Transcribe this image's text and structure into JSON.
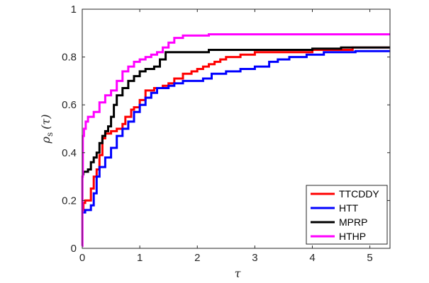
{
  "chart_data": {
    "type": "line",
    "title": "",
    "xlabel": "τ",
    "ylabel": "ρ",
    "ylabel_subscript": "s",
    "ylabel_arg": "(τ)",
    "xlim": [
      0,
      5.35
    ],
    "ylim": [
      0,
      1
    ],
    "x_ticks": [
      0,
      1,
      2,
      3,
      4,
      5
    ],
    "y_ticks": [
      0,
      0.2,
      0.4,
      0.6,
      0.8,
      1
    ],
    "x_tick_labels": [
      "0",
      "1",
      "2",
      "3",
      "4",
      "5"
    ],
    "y_tick_labels": [
      "0",
      "0.2",
      "0.4",
      "0.6",
      "0.8",
      "1"
    ],
    "grid": false,
    "legend_position": "bottom-right",
    "series": [
      {
        "name": "TTCDDY",
        "color": "#ff0000",
        "points": [
          [
            0,
            0.16
          ],
          [
            0.02,
            0.19
          ],
          [
            0.05,
            0.2
          ],
          [
            0.1,
            0.2
          ],
          [
            0.15,
            0.25
          ],
          [
            0.2,
            0.3
          ],
          [
            0.25,
            0.33
          ],
          [
            0.3,
            0.39
          ],
          [
            0.35,
            0.46
          ],
          [
            0.4,
            0.48
          ],
          [
            0.5,
            0.49
          ],
          [
            0.6,
            0.5
          ],
          [
            0.7,
            0.52
          ],
          [
            0.75,
            0.55
          ],
          [
            0.85,
            0.58
          ],
          [
            0.9,
            0.59
          ],
          [
            1.0,
            0.62
          ],
          [
            1.1,
            0.66
          ],
          [
            1.25,
            0.67
          ],
          [
            1.4,
            0.68
          ],
          [
            1.5,
            0.69
          ],
          [
            1.6,
            0.71
          ],
          [
            1.75,
            0.73
          ],
          [
            1.9,
            0.74
          ],
          [
            2.0,
            0.75
          ],
          [
            2.1,
            0.76
          ],
          [
            2.2,
            0.77
          ],
          [
            2.3,
            0.78
          ],
          [
            2.4,
            0.79
          ],
          [
            2.5,
            0.8
          ],
          [
            2.75,
            0.81
          ],
          [
            3.0,
            0.82
          ],
          [
            3.5,
            0.82
          ],
          [
            4.0,
            0.83
          ],
          [
            4.5,
            0.83
          ],
          [
            4.7,
            0.84
          ],
          [
            5.35,
            0.84
          ]
        ]
      },
      {
        "name": "HTT",
        "color": "#0000ff",
        "points": [
          [
            0,
            0.15
          ],
          [
            0.05,
            0.16
          ],
          [
            0.15,
            0.18
          ],
          [
            0.2,
            0.23
          ],
          [
            0.25,
            0.3
          ],
          [
            0.3,
            0.34
          ],
          [
            0.4,
            0.38
          ],
          [
            0.5,
            0.42
          ],
          [
            0.6,
            0.47
          ],
          [
            0.7,
            0.5
          ],
          [
            0.8,
            0.53
          ],
          [
            0.9,
            0.57
          ],
          [
            1.0,
            0.6
          ],
          [
            1.1,
            0.63
          ],
          [
            1.2,
            0.65
          ],
          [
            1.3,
            0.67
          ],
          [
            1.5,
            0.68
          ],
          [
            1.6,
            0.69
          ],
          [
            1.75,
            0.7
          ],
          [
            2.0,
            0.7
          ],
          [
            2.1,
            0.71
          ],
          [
            2.25,
            0.73
          ],
          [
            2.5,
            0.74
          ],
          [
            2.75,
            0.75
          ],
          [
            3.0,
            0.76
          ],
          [
            3.25,
            0.78
          ],
          [
            3.4,
            0.79
          ],
          [
            3.6,
            0.8
          ],
          [
            3.9,
            0.81
          ],
          [
            4.2,
            0.82
          ],
          [
            4.75,
            0.825
          ],
          [
            5.35,
            0.825
          ]
        ]
      },
      {
        "name": "MPRP",
        "color": "#000000",
        "points": [
          [
            0,
            0.31
          ],
          [
            0.02,
            0.32
          ],
          [
            0.1,
            0.33
          ],
          [
            0.15,
            0.36
          ],
          [
            0.2,
            0.38
          ],
          [
            0.25,
            0.4
          ],
          [
            0.3,
            0.44
          ],
          [
            0.35,
            0.47
          ],
          [
            0.4,
            0.49
          ],
          [
            0.45,
            0.51
          ],
          [
            0.5,
            0.55
          ],
          [
            0.55,
            0.6
          ],
          [
            0.6,
            0.64
          ],
          [
            0.7,
            0.67
          ],
          [
            0.8,
            0.7
          ],
          [
            0.9,
            0.72
          ],
          [
            1.0,
            0.74
          ],
          [
            1.1,
            0.75
          ],
          [
            1.25,
            0.76
          ],
          [
            1.35,
            0.79
          ],
          [
            1.45,
            0.82
          ],
          [
            1.6,
            0.82
          ],
          [
            2.0,
            0.82
          ],
          [
            2.2,
            0.83
          ],
          [
            2.5,
            0.83
          ],
          [
            3.0,
            0.83
          ],
          [
            3.5,
            0.83
          ],
          [
            4.0,
            0.835
          ],
          [
            4.5,
            0.84
          ],
          [
            5.35,
            0.84
          ]
        ]
      },
      {
        "name": "HTHP",
        "color": "#ff00ff",
        "points": [
          [
            0,
            0.01
          ],
          [
            0.003,
            0.3
          ],
          [
            0.01,
            0.47
          ],
          [
            0.03,
            0.5
          ],
          [
            0.06,
            0.53
          ],
          [
            0.1,
            0.55
          ],
          [
            0.2,
            0.57
          ],
          [
            0.3,
            0.61
          ],
          [
            0.4,
            0.64
          ],
          [
            0.5,
            0.66
          ],
          [
            0.6,
            0.7
          ],
          [
            0.7,
            0.74
          ],
          [
            0.8,
            0.76
          ],
          [
            0.9,
            0.78
          ],
          [
            1.0,
            0.79
          ],
          [
            1.1,
            0.8
          ],
          [
            1.2,
            0.81
          ],
          [
            1.3,
            0.82
          ],
          [
            1.4,
            0.84
          ],
          [
            1.5,
            0.86
          ],
          [
            1.6,
            0.88
          ],
          [
            1.75,
            0.89
          ],
          [
            2.0,
            0.89
          ],
          [
            2.2,
            0.895
          ],
          [
            3.0,
            0.895
          ],
          [
            5.35,
            0.895
          ]
        ]
      }
    ]
  }
}
